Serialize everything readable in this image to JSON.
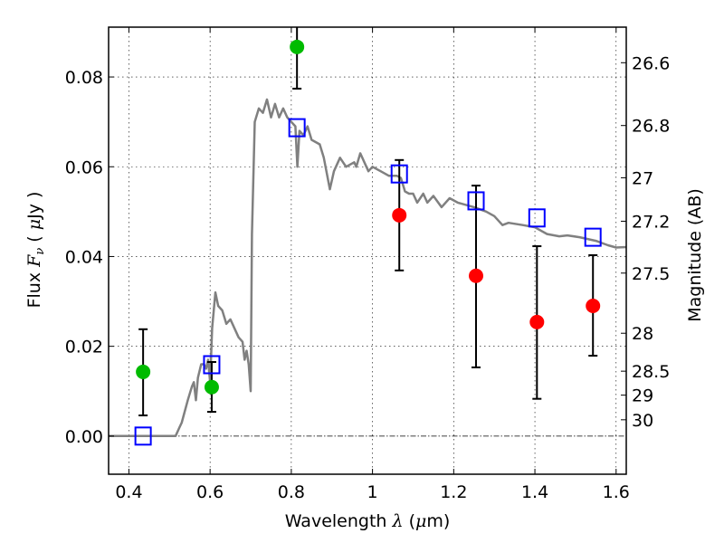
{
  "chart_data": {
    "type": "scatter",
    "title": "",
    "xlabel": "Wavelength  λ (μm)",
    "xlabel_parts": {
      "text": "Wavelength  ",
      "symbol": "λ",
      "unit_open": " (",
      "unit_symbol": "μ",
      "unit_rest": "m)"
    },
    "ylabel": "Flux  Fν  ( μJy )",
    "ylabel_parts": {
      "text": "Flux  ",
      "symbol": "F",
      "subscript": "ν",
      "open": "  ( ",
      "unit_symbol": "μ",
      "unit_rest": "Jy )"
    },
    "y2label": "Magnitude (AB)",
    "xlim": [
      0.35,
      1.625
    ],
    "ylim": [
      -0.0085,
      0.0911
    ],
    "grid": true,
    "legend": "none",
    "xticks": [
      0.4,
      0.6,
      0.8,
      1.0,
      1.2,
      1.4,
      1.6
    ],
    "xtick_labels": [
      "0.4",
      "0.6",
      "0.8",
      "1",
      "1.2",
      "1.4",
      "1.6"
    ],
    "yticks": [
      0.0,
      0.02,
      0.04,
      0.06,
      0.08
    ],
    "ytick_labels": [
      "0.00",
      "0.02",
      "0.04",
      "0.06",
      "0.08"
    ],
    "y2_ticks_mag": [
      26.6,
      26.8,
      27.0,
      27.2,
      27.5,
      28.0,
      28.5,
      29.0,
      30.0
    ],
    "y2_tick_labels": [
      "26.6",
      "26.8",
      "27",
      "27.2",
      "27.5",
      "28",
      "28.5",
      "29",
      "30"
    ],
    "ab_zeropoint_ujy": 23.9,
    "colors": {
      "spectrum": "#808080",
      "model_squares": "#0000ff",
      "detections": "#00bb00",
      "low_sn": "#ff0000",
      "errorbar": "#000000"
    },
    "series": [
      {
        "name": "Model spectrum",
        "kind": "line",
        "x": [
          0.35,
          0.515,
          0.525,
          0.53,
          0.545,
          0.555,
          0.56,
          0.565,
          0.57,
          0.578,
          0.585,
          0.59,
          0.595,
          0.6,
          0.605,
          0.613,
          0.62,
          0.63,
          0.64,
          0.65,
          0.66,
          0.67,
          0.68,
          0.685,
          0.69,
          0.695,
          0.7,
          0.703,
          0.71,
          0.72,
          0.73,
          0.74,
          0.75,
          0.76,
          0.77,
          0.78,
          0.79,
          0.8,
          0.81,
          0.815,
          0.82,
          0.83,
          0.84,
          0.85,
          0.87,
          0.88,
          0.895,
          0.905,
          0.92,
          0.935,
          0.955,
          0.96,
          0.97,
          0.98,
          0.99,
          1.0,
          1.02,
          1.04,
          1.06,
          1.07,
          1.08,
          1.09,
          1.1,
          1.11,
          1.125,
          1.135,
          1.15,
          1.17,
          1.19,
          1.21,
          1.25,
          1.28,
          1.3,
          1.32,
          1.335,
          1.37,
          1.4,
          1.43,
          1.46,
          1.48,
          1.51,
          1.55,
          1.58,
          1.6,
          1.625
        ],
        "y": [
          0.0,
          0.0,
          0.002,
          0.003,
          0.008,
          0.011,
          0.012,
          0.008,
          0.013,
          0.016,
          0.016,
          0.015,
          0.017,
          0.012,
          0.024,
          0.032,
          0.029,
          0.028,
          0.025,
          0.026,
          0.024,
          0.022,
          0.021,
          0.017,
          0.019,
          0.016,
          0.01,
          0.045,
          0.07,
          0.073,
          0.072,
          0.075,
          0.071,
          0.074,
          0.071,
          0.073,
          0.071,
          0.07,
          0.069,
          0.06,
          0.068,
          0.067,
          0.069,
          0.066,
          0.065,
          0.062,
          0.055,
          0.059,
          0.062,
          0.06,
          0.061,
          0.06,
          0.063,
          0.061,
          0.059,
          0.06,
          0.059,
          0.058,
          0.058,
          0.0575,
          0.0545,
          0.054,
          0.054,
          0.052,
          0.054,
          0.052,
          0.0535,
          0.051,
          0.053,
          0.052,
          0.051,
          0.05,
          0.049,
          0.047,
          0.0475,
          0.047,
          0.0465,
          0.045,
          0.0445,
          0.0447,
          0.0443,
          0.0435,
          0.0425,
          0.042,
          0.0421
        ]
      },
      {
        "name": "Model band fluxes",
        "kind": "open-square",
        "x": [
          0.435,
          0.604,
          0.814,
          1.066,
          1.255,
          1.405,
          1.543
        ],
        "y": [
          0.0,
          0.0159,
          0.0687,
          0.0584,
          0.0524,
          0.0486,
          0.0443
        ]
      },
      {
        "name": "Observed (detections)",
        "kind": "filled-circle",
        "color_key": "detections",
        "x": [
          0.435,
          0.604,
          0.814
        ],
        "y": [
          0.0143,
          0.0109,
          0.0867
        ],
        "err_low": [
          0.0046,
          0.0054,
          0.0774
        ],
        "err_high": [
          0.0238,
          0.0165,
          0.096
        ]
      },
      {
        "name": "Observed (low S/N)",
        "kind": "filled-circle",
        "color_key": "low_sn",
        "x": [
          1.066,
          1.255,
          1.405,
          1.543
        ],
        "y": [
          0.0492,
          0.0357,
          0.0254,
          0.029
        ],
        "err_low": [
          0.0369,
          0.0153,
          0.0083,
          0.0179
        ],
        "err_high": [
          0.0615,
          0.0558,
          0.0423,
          0.0403
        ]
      }
    ]
  }
}
